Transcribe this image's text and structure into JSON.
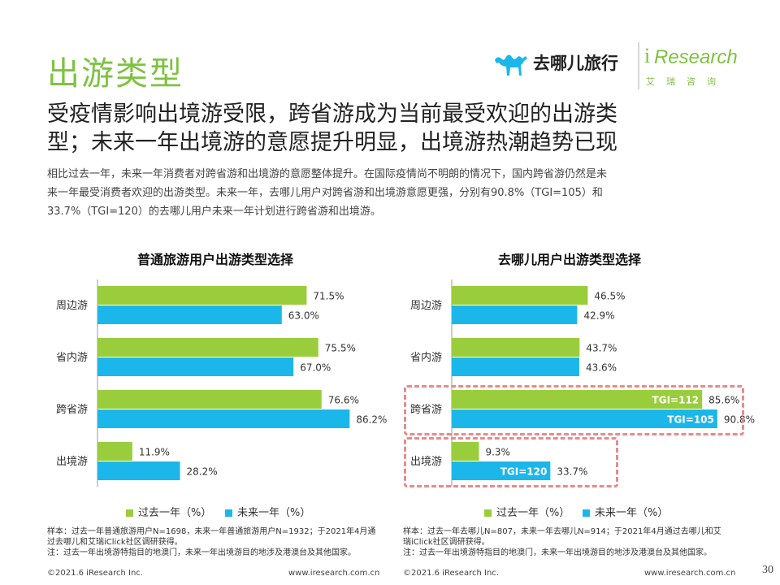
{
  "page": {
    "title": "出游类型",
    "headline_lines": [
      "受疫情影响出境游受限，跨省游成为当前最受欢迎的出游类",
      "型；未来一年出境游的意愿提升明显，出境游热潮趋势已现"
    ],
    "description_lines": [
      "相比过去一年，未来一年消费者对跨省游和出境游的意愿整体提升。在国际疫情尚不明朗的情况下，国内跨省游仍然是未",
      "来一年最受消费者欢迎的出游类型。未来一年，去哪儿用户对跨省游和出境游意愿更强，分别有90.8%（TGI=105）和",
      "33.7%（TGI=120）的去哪儿用户未来一年计划进行跨省游和出境游。"
    ],
    "page_number": "30"
  },
  "logos": {
    "qunar": "去哪儿旅行",
    "iresearch_i": "i",
    "iresearch_word": "Research",
    "iresearch_cn": "艾瑞咨询"
  },
  "colors": {
    "accent_green": "#7fc241",
    "past_year": "#9acd3c",
    "next_year": "#1cb7ea",
    "highlight_box": "#e58c8c"
  },
  "legend": {
    "past": "过去一年（%）",
    "next": "未来一年（%）"
  },
  "chart_data": [
    {
      "type": "bar",
      "orientation": "horizontal",
      "title": "普通旅游用户出游类型选择",
      "categories": [
        "周边游",
        "省内游",
        "跨省游",
        "出境游"
      ],
      "series": [
        {
          "name": "过去一年（%）",
          "values": [
            71.5,
            75.5,
            76.6,
            11.9
          ],
          "labels": [
            "71.5%",
            "75.5%",
            "76.6%",
            "11.9%"
          ]
        },
        {
          "name": "未来一年（%）",
          "values": [
            63.0,
            67.0,
            86.2,
            28.2
          ],
          "labels": [
            "63.0%",
            "67.0%",
            "86.2%",
            "28.2%"
          ]
        }
      ],
      "xlim": [
        0,
        100
      ],
      "note_lines": [
        "样本：过去一年普通旅游用户N=1698，未来一年普通旅游用户N=1932；于2021年4月通",
        "过去哪儿和艾瑞iClick社区调研获得。",
        "注：过去一年出境游特指目的地澳门，未来一年出境游目的地涉及港澳台及其他国家。"
      ],
      "footer_left": "©2021.6 iResearch Inc.",
      "footer_right": "www.iresearch.com.cn"
    },
    {
      "type": "bar",
      "orientation": "horizontal",
      "title": "去哪儿用户出游类型选择",
      "categories": [
        "周边游",
        "省内游",
        "跨省游",
        "出境游"
      ],
      "series": [
        {
          "name": "过去一年（%）",
          "values": [
            46.5,
            43.7,
            85.6,
            9.3
          ],
          "labels": [
            "46.5%",
            "43.7%",
            "85.6%",
            "9.3%"
          ],
          "tgi": [
            null,
            null,
            "TGI=112",
            null
          ]
        },
        {
          "name": "未来一年（%）",
          "values": [
            42.9,
            43.6,
            90.8,
            33.7
          ],
          "labels": [
            "42.9%",
            "43.6%",
            "90.8%",
            "33.7%"
          ],
          "tgi": [
            null,
            null,
            "TGI=105",
            "TGI=120"
          ]
        }
      ],
      "xlim": [
        0,
        100
      ],
      "highlighted_categories": [
        "跨省游",
        "出境游"
      ],
      "note_lines": [
        "样本：过去一年去哪儿N=807，未来一年去哪儿N=914；于2021年4月通过去哪儿和艾",
        "瑞iClick社区调研获得。",
        "注：过去一年出境游特指目的地澳门，未来一年出境游目的地涉及港澳台及其他国家。"
      ],
      "footer_left": "©2021.6 iResearch Inc.",
      "footer_right": "www.iresearch.com.cn"
    }
  ]
}
